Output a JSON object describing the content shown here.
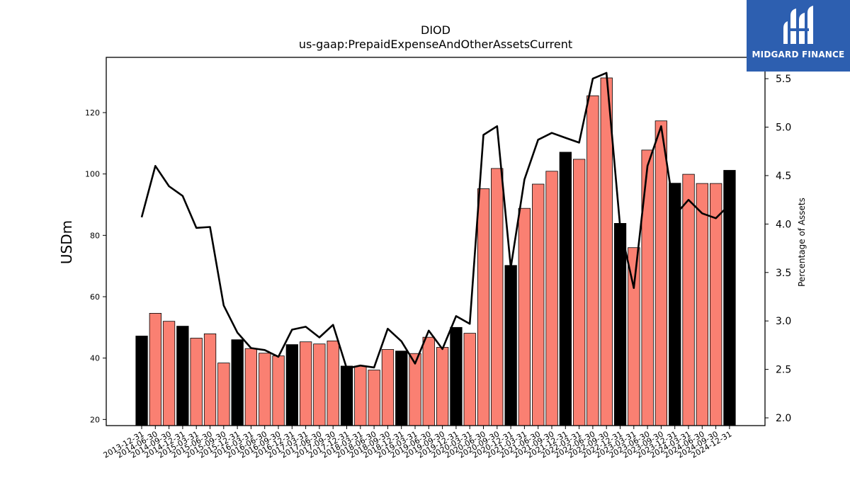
{
  "chart_data": {
    "type": "bar",
    "title": "DIOD",
    "subtitle": "us-gaap:PrepaidExpenseAndOtherAssetsCurrent",
    "ylabel": "USDm",
    "y2label": "Percentage of Assets",
    "ylim": [
      18,
      138
    ],
    "y2lim": [
      1.92,
      5.72
    ],
    "yticks": [
      20,
      40,
      60,
      80,
      100,
      120
    ],
    "y2ticks": [
      2.0,
      2.5,
      3.0,
      3.5,
      4.0,
      4.5,
      5.0,
      5.5
    ],
    "categories": [
      "2013-12-31",
      "2014-06-30",
      "2014-09-30",
      "2014-12-31",
      "2015-03-31",
      "2015-06-30",
      "2015-09-30",
      "2015-12-31",
      "2016-03-31",
      "2016-06-30",
      "2016-09-30",
      "2016-12-31",
      "2017-03-31",
      "2017-06-30",
      "2017-09-30",
      "2017-12-31",
      "2018-03-31",
      "2018-06-30",
      "2018-09-30",
      "2018-12-31",
      "2019-03-31",
      "2019-06-30",
      "2019-09-30",
      "2019-12-31",
      "2020-03-31",
      "2020-06-30",
      "2020-09-30",
      "2020-12-31",
      "2021-03-31",
      "2021-06-30",
      "2021-09-30",
      "2021-12-31",
      "2022-03-31",
      "2022-06-30",
      "2022-09-30",
      "2022-12-31",
      "2023-03-31",
      "2023-06-30",
      "2023-09-30",
      "2023-12-31",
      "2024-03-31",
      "2024-06-30",
      "2024-09-30",
      "2024-12-31"
    ],
    "series": [
      {
        "kind": "bar",
        "values": [
          47.2,
          54.6,
          52.0,
          50.4,
          46.5,
          47.9,
          38.4,
          46.0,
          43.1,
          41.6,
          40.7,
          44.4,
          45.3,
          44.6,
          45.6,
          37.4,
          37.4,
          36.1,
          42.8,
          42.3,
          41.5,
          46.8,
          43.5,
          50.0,
          48.1,
          95.2,
          101.8,
          70.2,
          88.8,
          96.7,
          100.9,
          107.1,
          104.8,
          125.5,
          131.3,
          83.9,
          76.0,
          107.8,
          117.3,
          97.0,
          99.9,
          96.9,
          96.9,
          101.2
        ],
        "year_end": [
          true,
          false,
          false,
          true,
          false,
          false,
          false,
          true,
          false,
          false,
          false,
          true,
          false,
          false,
          false,
          true,
          false,
          false,
          false,
          true,
          false,
          false,
          false,
          true,
          false,
          false,
          false,
          true,
          false,
          false,
          false,
          true,
          false,
          false,
          false,
          true,
          false,
          false,
          false,
          true,
          false,
          false,
          false,
          true
        ]
      },
      {
        "kind": "line",
        "axis": "right",
        "values": [
          4.07,
          4.6,
          4.39,
          4.29,
          3.96,
          3.97,
          3.16,
          2.88,
          2.72,
          2.7,
          2.63,
          2.91,
          2.94,
          2.83,
          2.96,
          2.51,
          2.54,
          2.52,
          2.92,
          2.79,
          2.56,
          2.9,
          2.71,
          3.05,
          2.97,
          4.92,
          5.01,
          3.55,
          4.46,
          4.87,
          4.94,
          4.89,
          4.84,
          5.5,
          5.56,
          3.97,
          3.34,
          4.6,
          5.01,
          4.09,
          4.25,
          4.11,
          4.06,
          4.2
        ]
      }
    ],
    "colors": {
      "bar": "#fa8072",
      "bar_year_end": "#000000",
      "line": "#000000"
    }
  },
  "logo": {
    "text": "MIDGARD FINANCE"
  }
}
